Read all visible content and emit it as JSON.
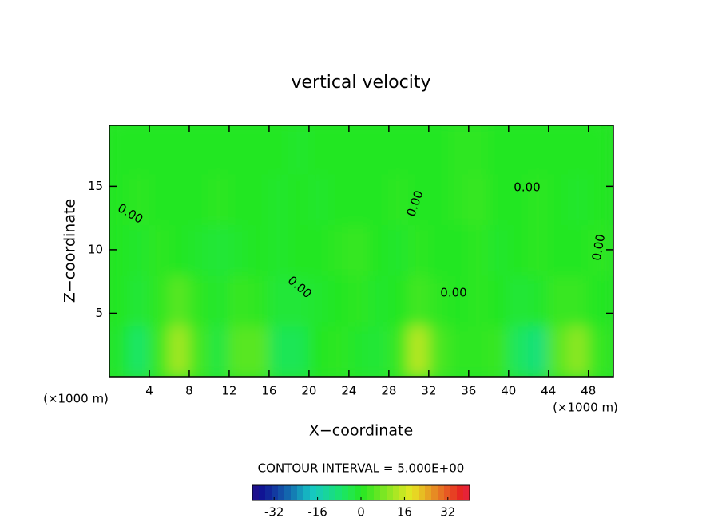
{
  "chart_data": {
    "type": "contour",
    "title": "vertical velocity",
    "xlabel": "X−coordinate",
    "ylabel": "Z−coordinate",
    "x_unit": "(×1000 m)",
    "contour_text": "CONTOUR INTERVAL = 5.000E+00",
    "contour_label": "0.00",
    "x": [
      1,
      3,
      5,
      7,
      9,
      11,
      13,
      15,
      17,
      19,
      21,
      23,
      25,
      27,
      29,
      31,
      33,
      35,
      37,
      39,
      41,
      43,
      45,
      47,
      49
    ],
    "z": [
      2,
      6,
      10,
      14,
      18
    ],
    "values": [
      [
        -1,
        -7,
        2,
        12,
        3,
        -3,
        5,
        5,
        -5,
        -5,
        0,
        1,
        -1,
        -2,
        2,
        14,
        4,
        1,
        1,
        2,
        -6,
        -9,
        5,
        10,
        2
      ],
      [
        0,
        -2,
        1,
        5,
        1,
        -1,
        2,
        1,
        -2,
        -2,
        -1,
        0,
        1,
        -1,
        0,
        3,
        1,
        0,
        1,
        0,
        -2,
        -1,
        2,
        2,
        0
      ],
      [
        0,
        -1,
        1,
        0,
        -1,
        -2,
        -1,
        0,
        -1,
        0,
        0,
        1,
        2,
        0,
        -1,
        1,
        0,
        0,
        1,
        -1,
        0,
        1,
        0,
        0,
        1
      ],
      [
        0,
        1,
        0,
        0,
        0,
        1,
        0,
        0,
        -1,
        0,
        -1,
        0,
        0,
        0,
        1,
        0,
        0,
        1,
        2,
        0,
        0,
        1,
        0,
        -1,
        0
      ],
      [
        0,
        0,
        0,
        0,
        0,
        0,
        0,
        0,
        0,
        -1,
        0,
        0,
        0,
        0,
        0,
        0,
        0,
        1,
        1,
        0,
        0,
        0,
        0,
        0,
        0
      ]
    ],
    "xlim": [
      0,
      50.5
    ],
    "ylim": [
      0,
      19.8
    ],
    "xticks": [
      4,
      8,
      12,
      16,
      20,
      24,
      28,
      32,
      36,
      40,
      44,
      48
    ],
    "yticks": [
      5,
      10,
      15
    ],
    "clim": [
      -40,
      40
    ],
    "cticks": [
      -32,
      -16,
      0,
      16,
      32
    ]
  }
}
